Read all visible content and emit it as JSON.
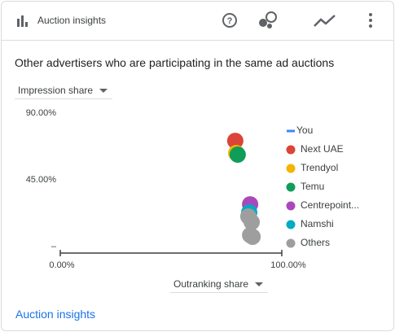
{
  "header": {
    "title": "Auction insights"
  },
  "subtitle": "Other advertisers who are participating in the same ad auctions",
  "y_selector": "Impression share",
  "x_selector": "Outranking share",
  "footer_link": "Auction insights",
  "chart_data": {
    "type": "scatter",
    "xlim": [
      0,
      100
    ],
    "xticks": [
      {
        "value": 0,
        "label": "0.00%"
      },
      {
        "value": 100,
        "label": "100.00%"
      }
    ],
    "ylim": [
      0,
      90
    ],
    "yticks": [
      {
        "value": 0,
        "label": "–"
      },
      {
        "value": 45,
        "label": "45.00%"
      },
      {
        "value": 90,
        "label": "90.00%"
      }
    ],
    "legend": "right",
    "series": [
      {
        "name": "You",
        "color": "#4285f4",
        "marker": "line",
        "x": [],
        "y": []
      },
      {
        "name": "Next UAE",
        "color": "#db4437",
        "marker": "circle",
        "x": [
          79.0
        ],
        "y": [
          71.3
        ]
      },
      {
        "name": "Trendyol",
        "color": "#f4b400",
        "marker": "circle",
        "x": [
          79.4
        ],
        "y": [
          63.1
        ]
      },
      {
        "name": "Temu",
        "color": "#0f9d58",
        "marker": "circle",
        "x": [
          80.1
        ],
        "y": [
          62.0
        ]
      },
      {
        "name": "Centrepoint...",
        "color": "#ab47bc",
        "marker": "circle",
        "x": [
          85.7
        ],
        "y": [
          28.5
        ]
      },
      {
        "name": "Namshi",
        "color": "#00acc1",
        "marker": "circle",
        "x": [
          85.3
        ],
        "y": [
          23.0
        ]
      },
      {
        "name": "Others",
        "color": "#9e9e9e",
        "marker": "circle",
        "x": [
          84.9,
          86.4,
          85.7,
          86.8
        ],
        "y": [
          20.3,
          16.5,
          7.7,
          6.6
        ]
      }
    ]
  }
}
